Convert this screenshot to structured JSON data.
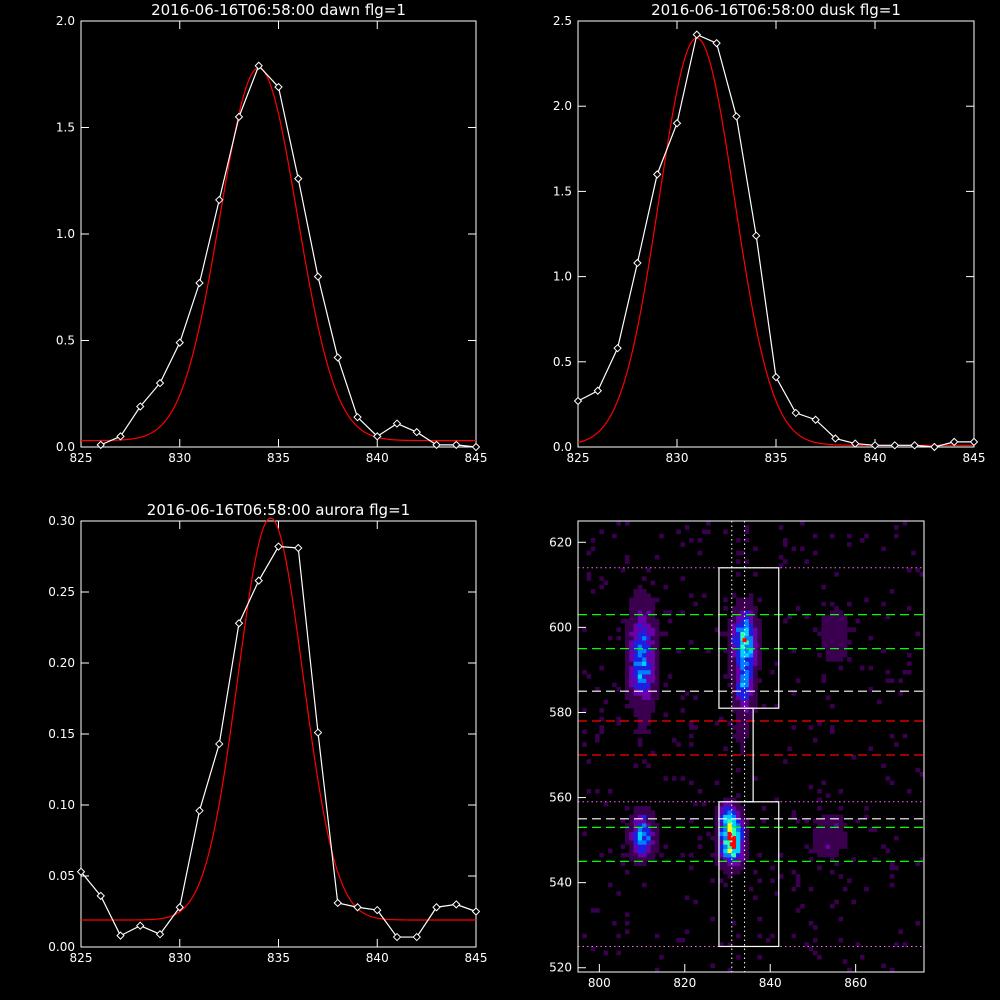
{
  "chart_data": [
    {
      "type": "line",
      "title": "2016-06-16T06:58:00 dawn flg=1",
      "xlim": [
        825,
        845
      ],
      "ylim": [
        0,
        2.0
      ],
      "xticks": [
        "825",
        "830",
        "835",
        "840",
        "845"
      ],
      "yticks": [
        "0.0",
        "0.5",
        "1.0",
        "1.5",
        "2.0"
      ],
      "series": [
        {
          "role": "observed",
          "color": "#ffffff",
          "markers": "diamond",
          "x": [
            826,
            827,
            828,
            829,
            830,
            831,
            832,
            833,
            834,
            835,
            836,
            837,
            838,
            839,
            840,
            841,
            842,
            843,
            844,
            845
          ],
          "y": [
            0.01,
            0.05,
            0.19,
            0.3,
            0.49,
            0.77,
            1.16,
            1.55,
            1.79,
            1.69,
            1.26,
            0.8,
            0.42,
            0.14,
            0.05,
            0.11,
            0.07,
            0.01,
            0.01,
            0.0
          ]
        },
        {
          "role": "fit",
          "color": "#ff0000",
          "gauss": {
            "center": 834.0,
            "sigma": 1.95,
            "amp": 1.75,
            "base": 0.03
          }
        }
      ]
    },
    {
      "type": "line",
      "title": "2016-06-16T06:58:00 dusk flg=1",
      "xlim": [
        825,
        845
      ],
      "ylim": [
        0,
        2.5
      ],
      "xticks": [
        "825",
        "830",
        "835",
        "840",
        "845"
      ],
      "yticks": [
        "0.0",
        "0.5",
        "1.0",
        "1.5",
        "2.0",
        "2.5"
      ],
      "series": [
        {
          "role": "observed",
          "color": "#ffffff",
          "markers": "diamond",
          "x": [
            825,
            826,
            827,
            828,
            829,
            830,
            831,
            832,
            833,
            834,
            835,
            836,
            837,
            838,
            839,
            840,
            841,
            842,
            843,
            844,
            845
          ],
          "y": [
            0.27,
            0.33,
            0.58,
            1.08,
            1.6,
            1.9,
            2.42,
            2.37,
            1.94,
            1.24,
            0.41,
            0.2,
            0.16,
            0.05,
            0.02,
            0.01,
            0.01,
            0.01,
            0.0,
            0.03,
            0.03
          ]
        },
        {
          "role": "fit",
          "color": "#ff0000",
          "gauss": {
            "center": 831.0,
            "sigma": 1.9,
            "amp": 2.39,
            "base": 0.01
          }
        }
      ]
    },
    {
      "type": "line",
      "title": "2016-06-16T06:58:00 aurora flg=1",
      "xlim": [
        825,
        845
      ],
      "ylim": [
        0,
        0.3
      ],
      "xticks": [
        "825",
        "830",
        "835",
        "840",
        "845"
      ],
      "yticks": [
        "0.00",
        "0.05",
        "0.10",
        "0.15",
        "0.20",
        "0.25",
        "0.30"
      ],
      "series": [
        {
          "role": "observed",
          "color": "#ffffff",
          "markers": "diamond",
          "x": [
            825,
            826,
            827,
            828,
            829,
            830,
            831,
            832,
            833,
            834,
            835,
            836,
            837,
            838,
            839,
            840,
            841,
            842,
            843,
            844,
            845
          ],
          "y": [
            0.053,
            0.036,
            0.008,
            0.015,
            0.009,
            0.028,
            0.096,
            0.143,
            0.228,
            0.258,
            0.282,
            0.281,
            0.151,
            0.031,
            0.028,
            0.026,
            0.007,
            0.007,
            0.028,
            0.03,
            0.025
          ]
        },
        {
          "role": "fit",
          "color": "#ff0000",
          "gauss": {
            "center": 834.6,
            "sigma": 1.65,
            "amp": 0.283,
            "base": 0.019
          }
        }
      ]
    },
    {
      "type": "heatmap",
      "xlim": [
        795,
        876
      ],
      "ylim": [
        519,
        625
      ],
      "xticks": [
        "800",
        "820",
        "840",
        "860"
      ],
      "yticks": [
        "520",
        "540",
        "560",
        "580",
        "600",
        "620"
      ],
      "colormap": [
        "#000000",
        "#3a004f",
        "#6a00a8",
        "#1e1ee0",
        "#0080ff",
        "#00d0ff",
        "#30ffb0",
        "#ffff00",
        "#ff0000"
      ],
      "blobs": [
        {
          "x": 810,
          "y": 595,
          "sx": 2.0,
          "sy": 7.0,
          "amp": 0.42
        },
        {
          "x": 810,
          "y": 588,
          "sx": 2.0,
          "sy": 4.0,
          "amp": 0.2
        },
        {
          "x": 834,
          "y": 597,
          "sx": 1.8,
          "sy": 4.5,
          "amp": 0.7
        },
        {
          "x": 834,
          "y": 586,
          "sx": 1.6,
          "sy": 4.0,
          "amp": 0.42
        },
        {
          "x": 855,
          "y": 598,
          "sx": 2.2,
          "sy": 4.0,
          "amp": 0.16
        },
        {
          "x": 810,
          "y": 551,
          "sx": 1.8,
          "sy": 3.2,
          "amp": 0.55
        },
        {
          "x": 831,
          "y": 550,
          "sx": 1.8,
          "sy": 3.5,
          "amp": 0.97
        },
        {
          "x": 830,
          "y": 556,
          "sx": 1.5,
          "sy": 2.0,
          "amp": 0.35
        },
        {
          "x": 854,
          "y": 551,
          "sx": 2.5,
          "sy": 3.5,
          "amp": 0.17
        },
        {
          "x": 833,
          "y": 575,
          "sx": 1.5,
          "sy": 5.0,
          "amp": 0.07
        },
        {
          "x": 810,
          "y": 575,
          "sx": 2.0,
          "sy": 5.0,
          "amp": 0.05
        }
      ],
      "hlines": [
        {
          "y": 603,
          "color": "#00ff00",
          "style": "dashed"
        },
        {
          "y": 595,
          "color": "#00ff00",
          "style": "dashed"
        },
        {
          "y": 585,
          "color": "#ffffff",
          "style": "dashed"
        },
        {
          "y": 578,
          "color": "#ff0000",
          "style": "dashed"
        },
        {
          "y": 570,
          "color": "#ff0000",
          "style": "dashed"
        },
        {
          "y": 555,
          "color": "#ffffff",
          "style": "dashed"
        },
        {
          "y": 553,
          "color": "#00ff00",
          "style": "dashed"
        },
        {
          "y": 545,
          "color": "#00ff00",
          "style": "dashed"
        },
        {
          "y": 614,
          "color": "#ff66ff",
          "style": "dotted"
        },
        {
          "y": 559,
          "color": "#ff66ff",
          "style": "dotted"
        },
        {
          "y": 525,
          "color": "#ff66ff",
          "style": "dotted"
        }
      ],
      "vlines": [
        {
          "x": 831,
          "color": "#ffffff",
          "style": "dotted"
        },
        {
          "x": 834,
          "color": "#ffffff",
          "style": "dotted"
        }
      ],
      "boxes": [
        {
          "x0": 828,
          "x1": 842,
          "y0": 581,
          "y1": 614
        },
        {
          "x0": 828,
          "x1": 842,
          "y0": 525,
          "y1": 559
        }
      ],
      "connector": [
        [
          834,
          581
        ],
        [
          836,
          581
        ],
        [
          836,
          559
        ],
        [
          834,
          559
        ]
      ],
      "peaks": [
        {
          "x": 834,
          "y": 597,
          "color": "#ff0000"
        },
        {
          "x": 831,
          "y": 549,
          "color": "#ff0000"
        }
      ]
    }
  ]
}
